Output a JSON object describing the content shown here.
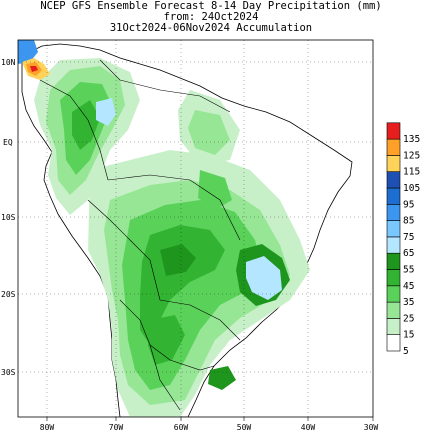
{
  "header": {
    "line1": "NCEP GFS Ensemble Forecast 8-14 Day Precipitation (mm)",
    "line2": "from: 24Oct2024",
    "line3": "31Oct2024-06Nov2024 Accumulation"
  },
  "axes": {
    "lon_labels": [
      "80W",
      "70W",
      "60W",
      "50W",
      "40W",
      "30W"
    ],
    "lat_labels": [
      "10N",
      "EQ",
      "10S",
      "20S",
      "30S"
    ]
  },
  "legend": {
    "levels": [
      "5",
      "15",
      "25",
      "35",
      "45",
      "55",
      "65",
      "75",
      "85",
      "95",
      "105",
      "115",
      "125",
      "135"
    ],
    "colors": [
      "#ffffff",
      "#c8f0c8",
      "#96e696",
      "#5ad25a",
      "#32b432",
      "#1e961e",
      "#b4e6ff",
      "#78c8ff",
      "#3c96f0",
      "#1e6ed2",
      "#1e50b4",
      "#ffd25a",
      "#ffa028",
      "#e61e1e"
    ]
  }
}
